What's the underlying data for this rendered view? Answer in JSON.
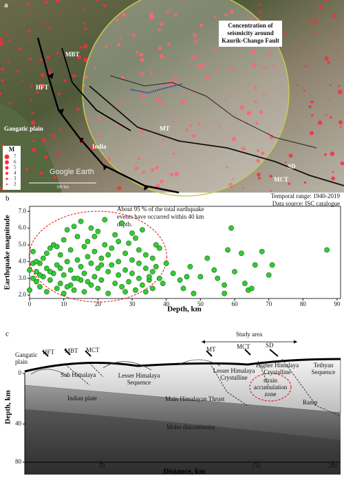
{
  "panel_a": {
    "label": "a",
    "callout": [
      "Concentration of",
      "seismicity around",
      "Kaurik-Chango Fault"
    ],
    "faults": {
      "mbt": "MBT",
      "hft": "HFT",
      "mt": "MT",
      "sd": "SD",
      "mct": "MCT"
    },
    "places": {
      "plain": "Gangatic plain",
      "india": "India"
    },
    "credit": "Google Earth",
    "scale": "100 km",
    "legend_title": "M",
    "legend_items": [
      "7",
      "6",
      "5",
      "4",
      "3",
      "2"
    ]
  },
  "chart_data": {
    "type": "scatter",
    "label": "b",
    "notes": [
      "Temporal range: 1940-2019",
      "Data source: ISC catalogue"
    ],
    "annotation": [
      "About 95 % of the total earthquake",
      "events have occurred within 40 km",
      "depth."
    ],
    "xlabel": "Depth, km",
    "ylabel": "Earthquake magnitude",
    "color": "#33cc33",
    "xlim": [
      0,
      91
    ],
    "ylim": [
      1.8,
      7.3
    ],
    "xticks": [
      0,
      10,
      20,
      30,
      40,
      50,
      60,
      70,
      80,
      90
    ],
    "yticks": [
      {
        "value": 2,
        "label": "2.0"
      },
      {
        "value": 3,
        "label": "3.0"
      },
      {
        "value": 4,
        "label": "4.0"
      },
      {
        "value": 5,
        "label": "5.0"
      },
      {
        "value": 6,
        "label": "6.0"
      },
      {
        "value": 7,
        "label": "7.0"
      }
    ],
    "x": [
      1,
      1,
      2,
      2,
      3,
      3,
      4,
      4,
      5,
      5,
      6,
      6,
      7,
      7,
      8,
      8,
      9,
      9,
      10,
      10,
      10,
      11,
      11,
      12,
      12,
      12,
      13,
      13,
      13,
      14,
      14,
      15,
      15,
      15,
      16,
      16,
      16,
      17,
      17,
      18,
      18,
      18,
      19,
      19,
      20,
      20,
      20,
      21,
      21,
      22,
      22,
      23,
      23,
      24,
      24,
      25,
      25,
      26,
      26,
      27,
      27,
      28,
      28,
      29,
      29,
      30,
      30,
      31,
      31,
      32,
      32,
      33,
      33,
      34,
      34,
      35,
      35,
      36,
      36,
      37,
      38,
      38,
      39,
      0,
      0,
      1,
      2,
      3,
      5,
      6,
      8,
      9,
      11,
      14,
      17,
      19,
      21,
      23,
      26,
      28,
      30,
      32,
      34,
      36,
      37,
      40,
      42,
      44,
      45,
      46,
      47,
      48,
      50,
      52,
      54,
      55,
      57,
      57,
      58,
      59,
      60,
      62,
      63,
      64,
      65,
      66,
      68,
      70,
      71,
      87
    ],
    "y": [
      4.6,
      3.0,
      2.8,
      3.4,
      3.9,
      2.5,
      3.1,
      4.2,
      2.2,
      3.6,
      4.8,
      2.9,
      3.3,
      5.0,
      2.4,
      3.8,
      4.4,
      2.7,
      5.3,
      3.2,
      2.1,
      4.0,
      5.9,
      2.6,
      3.5,
      4.7,
      6.1,
      3.0,
      2.3,
      5.5,
      4.1,
      2.9,
      3.7,
      6.4,
      4.9,
      2.2,
      3.3,
      5.2,
      4.3,
      2.6,
      6.0,
      3.9,
      4.6,
      3.1,
      5.8,
      2.4,
      3.6,
      4.2,
      2.9,
      5.0,
      6.5,
      3.4,
      2.1,
      4.8,
      3.8,
      5.6,
      2.7,
      4.0,
      3.2,
      6.3,
      2.5,
      4.5,
      3.5,
      5.1,
      2.8,
      4.1,
      3.3,
      5.4,
      2.3,
      3.9,
      4.7,
      2.6,
      5.9,
      3.6,
      4.4,
      2.9,
      3.1,
      4.2,
      2.4,
      3.7,
      3.0,
      4.8,
      2.7,
      3.5,
      2.3,
      3.9,
      4.0,
      3.2,
      4.5,
      3.4,
      4.9,
      3.6,
      2.5,
      3.0,
      2.8,
      5.5,
      3.8,
      4.4,
      5.2,
      2.2,
      5.7,
      3.0,
      2.2,
      3.4,
      5.0,
      3.9,
      3.3,
      2.9,
      2.4,
      3.1,
      3.7,
      2.1,
      3.1,
      4.2,
      3.5,
      3.0,
      2.6,
      2.1,
      4.7,
      6.0,
      3.4,
      4.5,
      2.7,
      2.3,
      2.4,
      3.8,
      4.6,
      3.2,
      3.8,
      4.7
    ]
  },
  "panel_c": {
    "label": "c",
    "study_area": "Study area",
    "labels": {
      "plain": [
        "Gangatic",
        "plain"
      ],
      "hft": "HFT",
      "mbt": "MBT",
      "mct1": "MCT",
      "mt": "MT",
      "mct2": "MCT",
      "sd": "SD",
      "sub": "Sub Himalaya",
      "lhs": [
        "Lesser Himalaya",
        "Sequence"
      ],
      "lhc": [
        "Lesser Himalaya",
        "Crystalline"
      ],
      "hhc": [
        "Higher Himalaya",
        "Crystalline"
      ],
      "tethyan": [
        "Tethyan",
        "Sequence"
      ],
      "strain": [
        "strain",
        "accumulation",
        "zone"
      ],
      "mht": "Main Himalayan Thrust",
      "plate": "Indian plate",
      "ramp": "Ramp",
      "moho": "Moho discontinuity"
    },
    "xlabel": "Distance, km",
    "ylabel": "Depth, km",
    "xlim": [
      0,
      200
    ],
    "ylim": [
      0,
      80
    ],
    "xticks": [
      50,
      150,
      200
    ],
    "yticks": [
      0,
      40,
      80
    ]
  }
}
